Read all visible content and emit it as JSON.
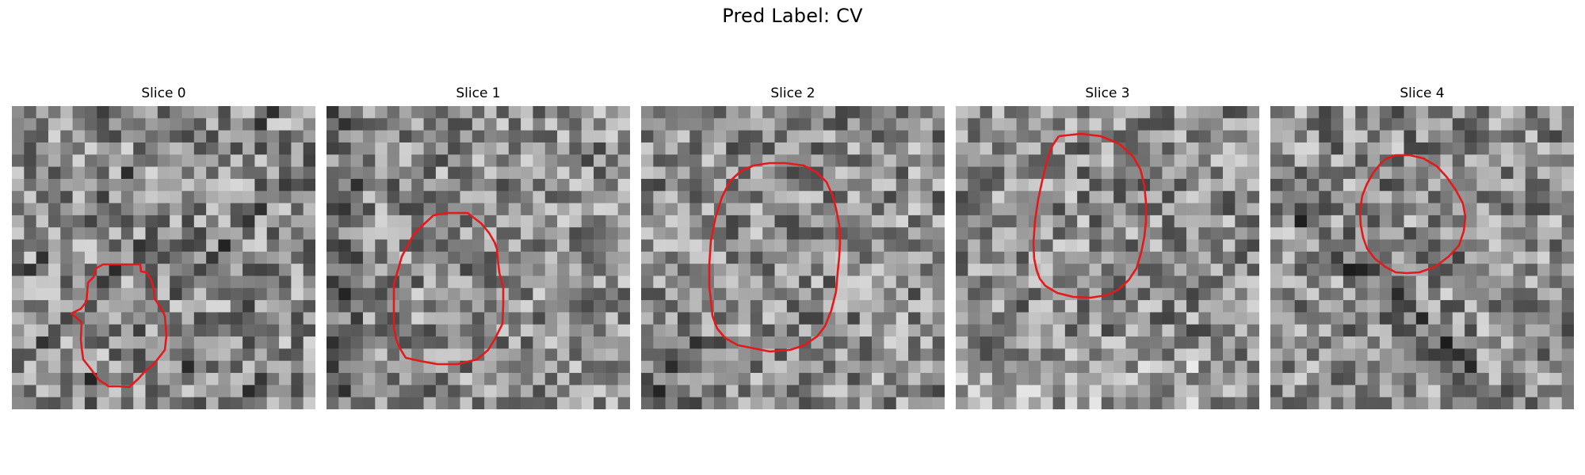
{
  "figure": {
    "title": "Pred Label: CV",
    "contour_color": "#e31a1c",
    "background_color": "#ffffff"
  },
  "slices": [
    {
      "title": "Slice 0",
      "contour_icon": "red-contour-icon"
    },
    {
      "title": "Slice 1",
      "contour_icon": "red-contour-icon"
    },
    {
      "title": "Slice 2",
      "contour_icon": "red-contour-icon"
    },
    {
      "title": "Slice 3",
      "contour_icon": "red-contour-icon"
    },
    {
      "title": "Slice 4",
      "contour_icon": "red-contour-icon"
    }
  ]
}
